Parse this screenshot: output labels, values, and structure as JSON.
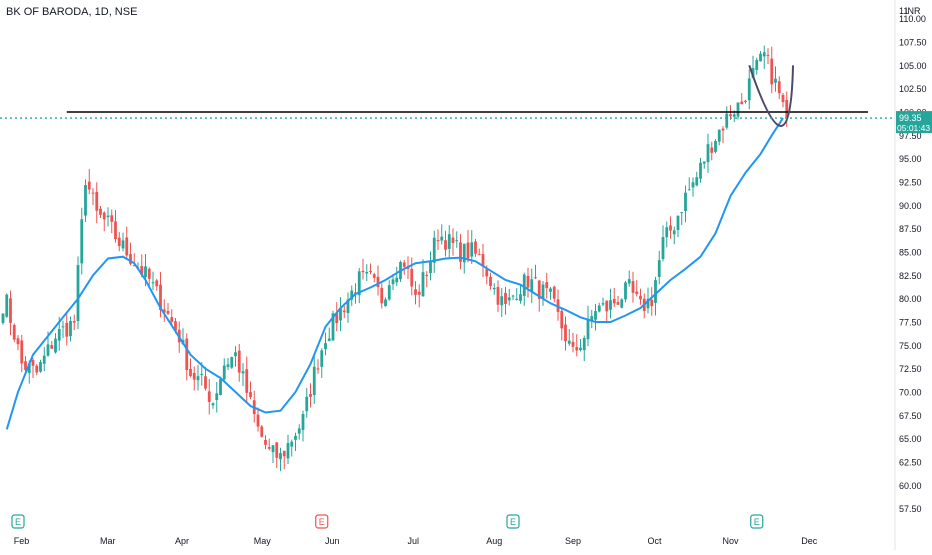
{
  "chart_data": {
    "type": "candlestick",
    "title": "BK OF BARODA, 1D, NSE",
    "currency": "INR",
    "y_axis_top_label": "11",
    "ylim": [
      56.5,
      112
    ],
    "y_ticks": [
      "57.50",
      "60.00",
      "62.50",
      "65.00",
      "67.50",
      "70.00",
      "72.50",
      "75.00",
      "77.50",
      "80.00",
      "82.50",
      "85.00",
      "87.50",
      "90.00",
      "92.50",
      "95.00",
      "97.50",
      "100.00",
      "102.50",
      "105.00",
      "107.50",
      "110.00"
    ],
    "x_ticks": [
      "Feb",
      "Mar",
      "Apr",
      "May",
      "Jun",
      "Jul",
      "Aug",
      "Sep",
      "Oct",
      "Nov",
      "Dec"
    ],
    "last_price": "99.35",
    "countdown": "05:01:43",
    "horizontal_level": 100.0,
    "earnings_markers": [
      {
        "label": "E",
        "month": "Feb",
        "kind": "past"
      },
      {
        "label": "E",
        "month": "May",
        "kind": "missed"
      },
      {
        "label": "E",
        "month": "Aug",
        "kind": "past"
      },
      {
        "label": "E",
        "month": "Nov",
        "kind": "past"
      }
    ],
    "colors": {
      "up": "#26a69a",
      "down": "#ef5350",
      "ma": "#2196f3",
      "last": "#26a69a",
      "level": "#000000",
      "drawing": "#4a4a6a"
    },
    "price_path": [
      [
        1,
        79.5
      ],
      [
        5,
        73
      ],
      [
        9,
        72
      ],
      [
        14,
        76
      ],
      [
        19,
        77.5
      ],
      [
        22,
        93
      ],
      [
        25,
        89
      ],
      [
        28,
        88
      ],
      [
        31,
        86
      ],
      [
        35,
        84
      ],
      [
        39,
        82
      ],
      [
        43,
        79
      ],
      [
        47,
        76
      ],
      [
        50,
        72
      ],
      [
        53,
        71
      ],
      [
        56,
        69
      ],
      [
        59,
        73
      ],
      [
        62,
        74
      ],
      [
        65,
        70
      ],
      [
        68,
        66
      ],
      [
        71,
        63.5
      ],
      [
        74,
        63
      ],
      [
        77,
        65
      ],
      [
        80,
        67
      ],
      [
        83,
        72
      ],
      [
        86,
        76
      ],
      [
        89,
        78
      ],
      [
        92,
        80
      ],
      [
        95,
        82
      ],
      [
        98,
        82
      ],
      [
        101,
        80
      ],
      [
        104,
        83
      ],
      [
        107,
        84
      ],
      [
        110,
        80
      ],
      [
        113,
        83
      ],
      [
        116,
        87
      ],
      [
        119,
        86
      ],
      [
        122,
        85
      ],
      [
        125,
        85
      ],
      [
        128,
        84
      ],
      [
        131,
        81
      ],
      [
        134,
        79
      ],
      [
        137,
        81
      ],
      [
        140,
        82
      ],
      [
        143,
        81
      ],
      [
        146,
        80
      ],
      [
        149,
        77
      ],
      [
        152,
        74
      ],
      [
        155,
        76
      ],
      [
        158,
        79
      ],
      [
        161,
        79
      ],
      [
        164,
        80
      ],
      [
        167,
        81
      ],
      [
        170,
        79
      ],
      [
        173,
        80
      ],
      [
        176,
        86
      ],
      [
        179,
        88
      ],
      [
        182,
        91
      ],
      [
        185,
        93
      ],
      [
        188,
        96
      ],
      [
        191,
        98
      ],
      [
        194,
        100
      ],
      [
        197,
        101
      ],
      [
        200,
        104
      ],
      [
        203,
        106
      ],
      [
        206,
        103
      ],
      [
        209,
        99.35
      ]
    ],
    "ma_path": [
      [
        1,
        66
      ],
      [
        4,
        70
      ],
      [
        8,
        74
      ],
      [
        12,
        76
      ],
      [
        16,
        78
      ],
      [
        20,
        80
      ],
      [
        24,
        82.5
      ],
      [
        28,
        84.3
      ],
      [
        32,
        84.5
      ],
      [
        35,
        83.8
      ],
      [
        38,
        82
      ],
      [
        42,
        79
      ],
      [
        46,
        76.5
      ],
      [
        50,
        74
      ],
      [
        54,
        72.5
      ],
      [
        58,
        71.5
      ],
      [
        62,
        70
      ],
      [
        66,
        68.5
      ],
      [
        70,
        67.8
      ],
      [
        74,
        68
      ],
      [
        78,
        70
      ],
      [
        82,
        73
      ],
      [
        86,
        77
      ],
      [
        90,
        79
      ],
      [
        94,
        80.5
      ],
      [
        98,
        81.2
      ],
      [
        102,
        82
      ],
      [
        106,
        83
      ],
      [
        110,
        83.8
      ],
      [
        114,
        84
      ],
      [
        118,
        84.3
      ],
      [
        122,
        84.4
      ],
      [
        126,
        84
      ],
      [
        130,
        83
      ],
      [
        134,
        82
      ],
      [
        138,
        81.5
      ],
      [
        142,
        80.5
      ],
      [
        146,
        79.5
      ],
      [
        150,
        78.8
      ],
      [
        154,
        78
      ],
      [
        158,
        77.5
      ],
      [
        162,
        77.5
      ],
      [
        166,
        78.2
      ],
      [
        170,
        79
      ],
      [
        174,
        80.5
      ],
      [
        178,
        82
      ],
      [
        182,
        83.2
      ],
      [
        186,
        84.5
      ],
      [
        190,
        87
      ],
      [
        194,
        91
      ],
      [
        198,
        93.5
      ],
      [
        202,
        95.5
      ],
      [
        205,
        97.5
      ],
      [
        208,
        99.35
      ]
    ]
  }
}
